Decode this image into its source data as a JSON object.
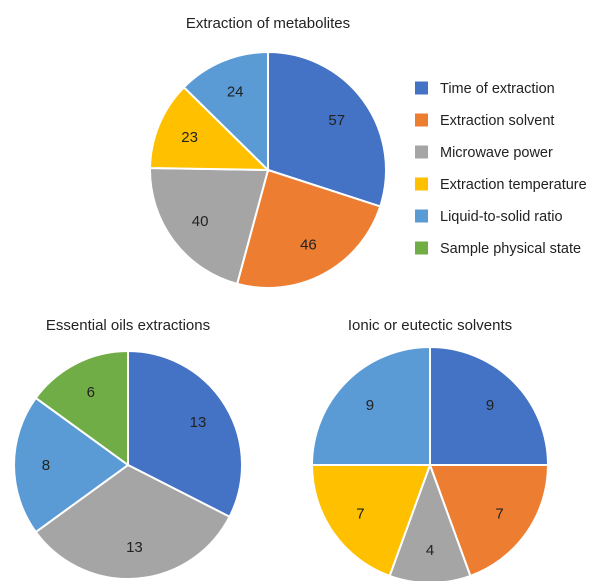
{
  "chart_data": [
    {
      "type": "pie",
      "title": "Extraction of metabolites",
      "categories": [
        "Time of extraction",
        "Extraction solvent",
        "Microwave power",
        "Extraction temperature",
        "Liquid-to-solid ratio"
      ],
      "values": [
        57,
        46,
        40,
        23,
        24
      ],
      "colors": [
        "#4472C4",
        "#ED7D31",
        "#A5A5A5",
        "#FFC000",
        "#5B9BD5"
      ]
    },
    {
      "type": "pie",
      "title": "Essential oils extractions",
      "categories": [
        "Time of extraction",
        "Microwave power",
        "Liquid-to-solid ratio",
        "Sample physical state"
      ],
      "values": [
        13,
        13,
        8,
        6
      ],
      "colors": [
        "#4472C4",
        "#A5A5A5",
        "#5B9BD5",
        "#70AD47"
      ]
    },
    {
      "type": "pie",
      "title": "Ionic or eutectic solvents",
      "categories": [
        "Time of extraction",
        "Extraction solvent",
        "Microwave power",
        "Extraction temperature",
        "Liquid-to-solid ratio"
      ],
      "values": [
        9,
        7,
        4,
        7,
        9
      ],
      "colors": [
        "#4472C4",
        "#ED7D31",
        "#A5A5A5",
        "#FFC000",
        "#5B9BD5"
      ]
    }
  ],
  "legend": {
    "placement": "right of top chart",
    "items": [
      {
        "label": "Time of extraction",
        "color": "#4472C4"
      },
      {
        "label": "Extraction solvent",
        "color": "#ED7D31"
      },
      {
        "label": "Microwave power",
        "color": "#A5A5A5"
      },
      {
        "label": "Extraction temperature",
        "color": "#FFC000"
      },
      {
        "label": "Liquid-to-solid ratio",
        "color": "#5B9BD5"
      },
      {
        "label": "Sample physical state",
        "color": "#70AD47"
      }
    ]
  }
}
